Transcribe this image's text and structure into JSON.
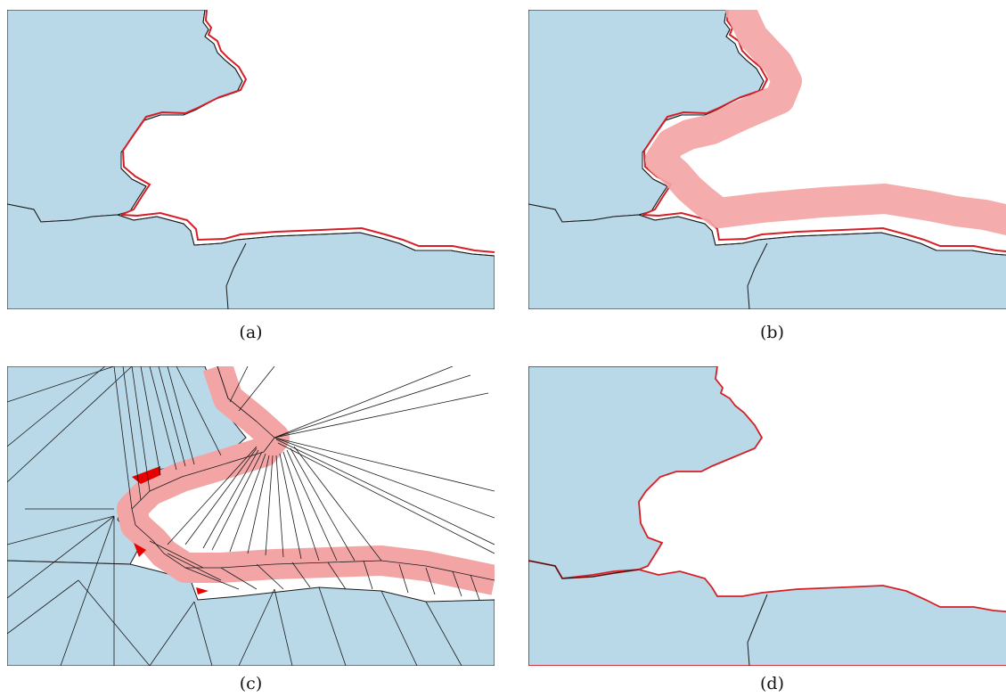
{
  "captions": {
    "a": "(a)",
    "b": "(b)",
    "c": "(c)",
    "d": "(d)"
  },
  "colors": {
    "land": "#b9d8e8",
    "water": "#ffffff",
    "stroke": "#1a1a1a",
    "highlight_line": "#d41f27",
    "buffer_fill": "#f3a5a6",
    "mesh_line": "#1a1a1a",
    "sliver_fill": "#e60000"
  }
}
